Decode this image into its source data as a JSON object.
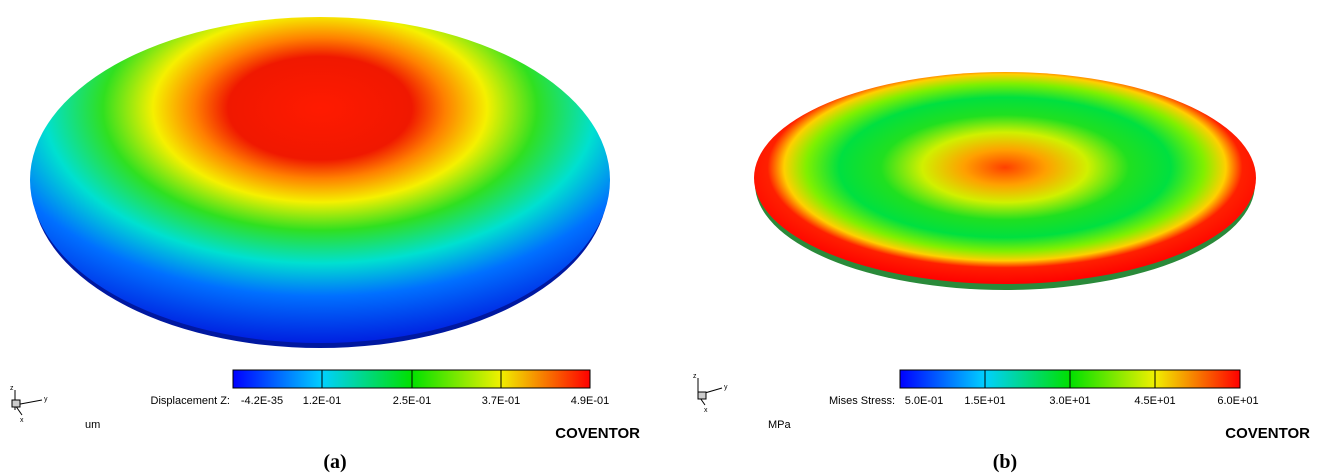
{
  "panels": [
    {
      "caption": "(a)",
      "axes": [
        "z",
        "y",
        "x"
      ],
      "unit": "um",
      "brand": "COVENTOR",
      "colorbar": {
        "label": "Displacement Z:",
        "ticks": [
          "-4.2E-35",
          "1.2E-01",
          "2.5E-01",
          "3.7E-01",
          "4.9E-01"
        ]
      }
    },
    {
      "caption": "(b)",
      "axes": [
        "z",
        "y",
        "x"
      ],
      "unit": "MPa",
      "brand": "COVENTOR",
      "colorbar": {
        "label": "Mises Stress:",
        "ticks": [
          "5.0E-01",
          "1.5E+01",
          "3.0E+01",
          "4.5E+01",
          "6.0E+01"
        ]
      }
    }
  ]
}
